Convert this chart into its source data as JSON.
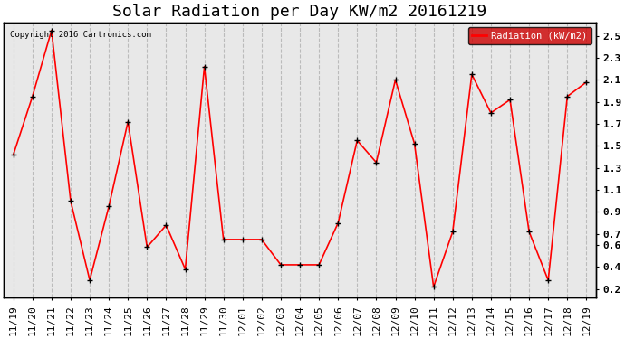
{
  "title": "Solar Radiation per Day KW/m2 20161219",
  "copyright_text": "Copyright 2016 Cartronics.com",
  "legend_label": "Radiation (kW/m2)",
  "x_labels": [
    "11/19",
    "11/20",
    "11/21",
    "11/22",
    "11/23",
    "11/24",
    "11/25",
    "11/26",
    "11/27",
    "11/28",
    "11/29",
    "11/30",
    "12/01",
    "12/02",
    "12/03",
    "12/04",
    "12/05",
    "12/06",
    "12/07",
    "12/08",
    "12/09",
    "12/10",
    "12/11",
    "12/12",
    "12/13",
    "12/14",
    "12/15",
    "12/16",
    "12/17",
    "12/18",
    "12/19"
  ],
  "y_values": [
    1.42,
    1.95,
    2.55,
    1.0,
    0.28,
    0.95,
    1.72,
    0.58,
    0.78,
    0.38,
    2.22,
    0.65,
    0.65,
    0.65,
    0.42,
    0.42,
    0.42,
    0.8,
    1.55,
    1.35,
    2.1,
    1.52,
    0.22,
    0.72,
    2.15,
    1.8,
    1.92,
    0.72,
    0.28,
    1.95,
    2.08
  ],
  "line_color": "red",
  "marker": "+",
  "marker_color": "black",
  "marker_size": 5,
  "line_width": 1.2,
  "ylim": [
    0.12,
    2.62
  ],
  "ytick_vals": [
    0.2,
    0.4,
    0.6,
    0.7,
    0.9,
    1.1,
    1.3,
    1.5,
    1.7,
    1.9,
    2.1,
    2.3,
    2.5
  ],
  "ytick_labels": [
    "0.2",
    "0.4",
    "0.6",
    "0.7",
    "0.9",
    "1.1",
    "1.3",
    "1.5",
    "1.7",
    "1.9",
    "2.1",
    "2.3",
    "2.5"
  ],
  "background_color": "#ffffff",
  "plot_bg_color": "#e8e8e8",
  "grid_color": "#bbbbbb",
  "title_fontsize": 13,
  "tick_fontsize": 8,
  "legend_bg": "#cc0000",
  "legend_text_color": "white"
}
